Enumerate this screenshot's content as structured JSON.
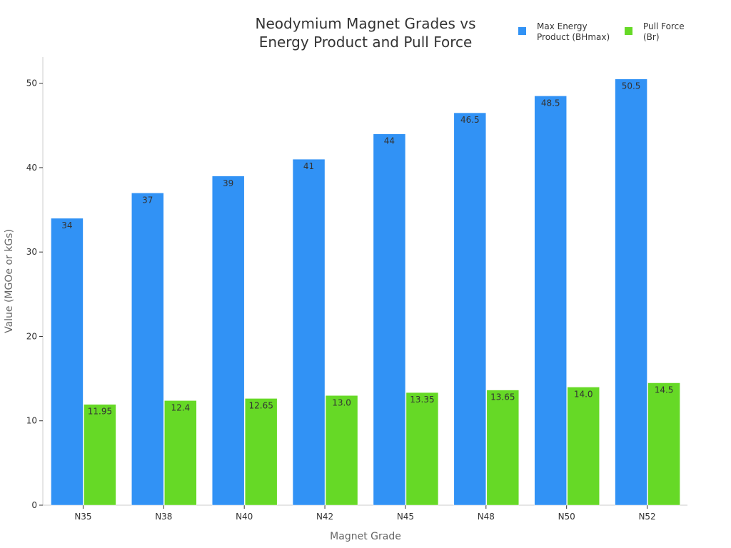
{
  "chart_data": {
    "type": "bar",
    "title": "Neodymium Magnet Grades vs\nEnergy Product and Pull Force",
    "xlabel": "Magnet Grade",
    "ylabel": "Value (MGOe or kGs)",
    "categories": [
      "N35",
      "N38",
      "N40",
      "N42",
      "N45",
      "N48",
      "N50",
      "N52"
    ],
    "series": [
      {
        "name": "Max Energy\nProduct (BHmax)",
        "color": "#3192f5",
        "values": [
          34,
          37,
          39,
          41,
          44,
          46.5,
          48.5,
          50.5
        ],
        "labels": [
          "34",
          "37",
          "39",
          "41",
          "44",
          "46.5",
          "48.5",
          "50.5"
        ]
      },
      {
        "name": "Pull Force\n(Br)",
        "color": "#66d926",
        "values": [
          11.95,
          12.4,
          12.65,
          13.0,
          13.35,
          13.65,
          14.0,
          14.5
        ],
        "labels": [
          "11.95",
          "12.4",
          "12.65",
          "13.0",
          "13.35",
          "13.65",
          "14.0",
          "14.5"
        ]
      }
    ],
    "ylim": [
      0,
      53.1
    ],
    "yticks": [
      0,
      10,
      20,
      30,
      40,
      50
    ],
    "grid": false,
    "legend_position": "top-right"
  }
}
